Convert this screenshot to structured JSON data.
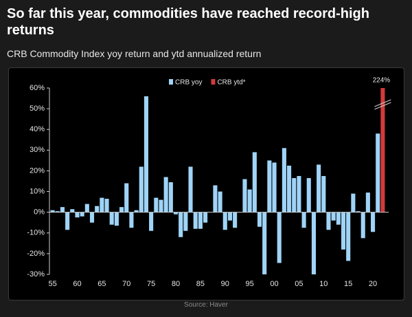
{
  "chart_data": {
    "type": "bar",
    "title": "So far this year, commodities have reached record-high returns",
    "subtitle": "CRB Commodity Index yoy return and ytd annualized return",
    "source": "Source: Haver",
    "categories": [
      "55",
      null,
      null,
      null,
      null,
      "60",
      null,
      null,
      null,
      null,
      "65",
      null,
      null,
      null,
      null,
      "70",
      null,
      null,
      null,
      null,
      "75",
      null,
      null,
      null,
      null,
      "80",
      null,
      null,
      null,
      null,
      "85",
      null,
      null,
      null,
      null,
      "90",
      null,
      null,
      null,
      null,
      "95",
      null,
      null,
      null,
      null,
      "00",
      null,
      null,
      null,
      null,
      "05",
      null,
      null,
      null,
      null,
      "10",
      null,
      null,
      null,
      null,
      "15",
      null,
      null,
      null,
      null,
      "20",
      null,
      null
    ],
    "series": [
      {
        "name": "CRB yoy",
        "color": "#9fd4f7",
        "values": [
          1,
          0.5,
          2.5,
          -8.5,
          1.5,
          -2.5,
          -2,
          4,
          -5,
          3,
          7,
          6.5,
          -6,
          -6.5,
          2.5,
          14,
          -7.5,
          1,
          22,
          56,
          -9,
          7,
          6,
          17,
          14.5,
          -1,
          -12,
          -9,
          22,
          -8,
          -8,
          -5,
          0,
          13,
          10,
          -8.5,
          -4,
          -7.5,
          0,
          16,
          11,
          29,
          -7,
          -30,
          25,
          24,
          -24.5,
          31,
          22.5,
          16.5,
          17.5,
          -7.5,
          16.5,
          -30,
          23,
          17.5,
          -8.5,
          -4,
          -6,
          -18,
          -23.5,
          9,
          0.5,
          -12.5,
          9.5,
          -9.5,
          38,
          null
        ]
      },
      {
        "name": "CRB ytd*",
        "color": "#d23a3a",
        "values": [
          null,
          null,
          null,
          null,
          null,
          null,
          null,
          null,
          null,
          null,
          null,
          null,
          null,
          null,
          null,
          null,
          null,
          null,
          null,
          null,
          null,
          null,
          null,
          null,
          null,
          null,
          null,
          null,
          null,
          null,
          null,
          null,
          null,
          null,
          null,
          null,
          null,
          null,
          null,
          null,
          null,
          null,
          null,
          null,
          null,
          null,
          null,
          null,
          null,
          null,
          null,
          null,
          null,
          null,
          null,
          null,
          null,
          null,
          null,
          null,
          null,
          null,
          null,
          null,
          null,
          null,
          null,
          224
        ],
        "value_labels": [
          null,
          null,
          null,
          null,
          null,
          null,
          null,
          null,
          null,
          null,
          null,
          null,
          null,
          null,
          null,
          null,
          null,
          null,
          null,
          null,
          null,
          null,
          null,
          null,
          null,
          null,
          null,
          null,
          null,
          null,
          null,
          null,
          null,
          null,
          null,
          null,
          null,
          null,
          null,
          null,
          null,
          null,
          null,
          null,
          null,
          null,
          null,
          null,
          null,
          null,
          null,
          null,
          null,
          null,
          null,
          null,
          null,
          null,
          null,
          null,
          null,
          null,
          null,
          null,
          null,
          null,
          null,
          "224%"
        ]
      }
    ],
    "ylim": [
      -30,
      60
    ],
    "yticks": [
      {
        "value": -30,
        "label": "-30%"
      },
      {
        "value": -20,
        "label": "-20%"
      },
      {
        "value": -10,
        "label": "-10%"
      },
      {
        "value": 0,
        "label": "0%"
      },
      {
        "value": 10,
        "label": "10%"
      },
      {
        "value": 20,
        "label": "20%"
      },
      {
        "value": 30,
        "label": "30%"
      },
      {
        "value": 40,
        "label": "40%"
      },
      {
        "value": 50,
        "label": "50%"
      },
      {
        "value": 60,
        "label": "60%"
      }
    ],
    "legend": "top"
  }
}
